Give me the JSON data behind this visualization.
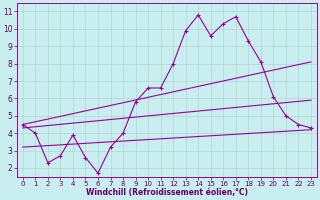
{
  "bg_color": "#c8eef0",
  "line_color": "#990099",
  "grid_color": "#b0d8d0",
  "xlabel": "Windchill (Refroidissement éolien,°C)",
  "xlabel_color": "#660066",
  "tick_color": "#660066",
  "ylim": [
    1.5,
    11.5
  ],
  "xlim": [
    -0.5,
    23.5
  ],
  "yticks": [
    2,
    3,
    4,
    5,
    6,
    7,
    8,
    9,
    10,
    11
  ],
  "xticks": [
    0,
    1,
    2,
    3,
    4,
    5,
    6,
    7,
    8,
    9,
    10,
    11,
    12,
    13,
    14,
    15,
    16,
    17,
    18,
    19,
    20,
    21,
    22,
    23
  ],
  "jagged_x": [
    0,
    1,
    2,
    3,
    4,
    5,
    6,
    7,
    8,
    9,
    10,
    11,
    12,
    13,
    14,
    15,
    16,
    17,
    18,
    19,
    20,
    21,
    22,
    23
  ],
  "jagged_y": [
    4.5,
    4.0,
    2.3,
    2.7,
    3.9,
    2.6,
    1.7,
    3.2,
    4.0,
    5.8,
    6.6,
    6.6,
    8.0,
    9.9,
    10.8,
    9.6,
    10.3,
    10.7,
    9.3,
    8.1,
    6.1,
    5.0,
    4.5,
    4.3
  ],
  "upper_line_x": [
    0,
    23
  ],
  "upper_line_y": [
    4.5,
    8.1
  ],
  "mid_line_x": [
    0,
    23
  ],
  "mid_line_y": [
    4.3,
    5.9
  ],
  "lower_line_x": [
    0,
    23
  ],
  "lower_line_y": [
    3.2,
    4.2
  ]
}
